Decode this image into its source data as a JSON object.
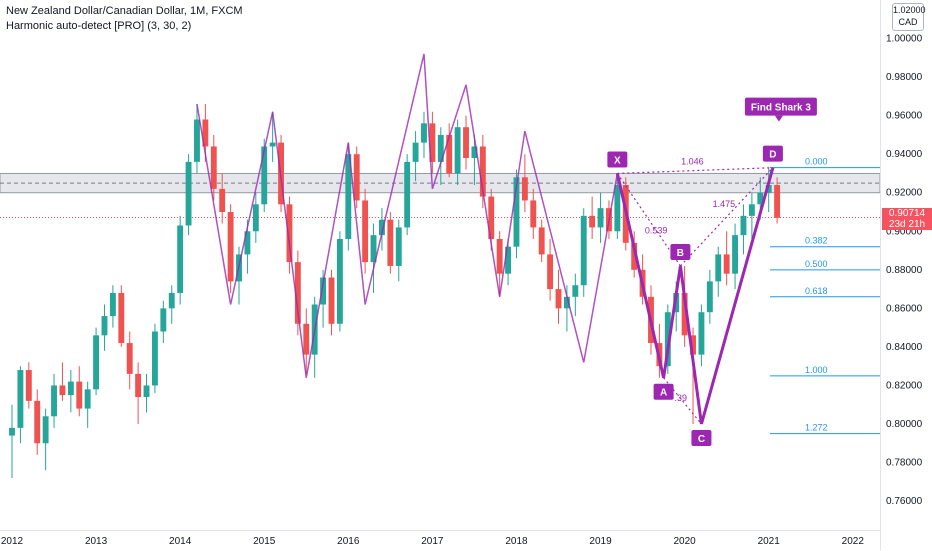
{
  "header": {
    "title": "New Zealand Dollar/Canadian Dollar, 1M, FXCM",
    "indicator": "Harmonic auto-detect [PRO] (3, 30, 2)"
  },
  "currency_badge": {
    "value": "1.02000",
    "unit": "CAD"
  },
  "last_price": {
    "value": "0.90714",
    "countdown": "23d 21h"
  },
  "pattern": {
    "name": "Find Shark 3",
    "points": [
      {
        "label": "X",
        "date": "2019.2",
        "price": 0.93
      },
      {
        "label": "A",
        "date": "2019.75",
        "price": 0.824
      },
      {
        "label": "B",
        "date": "2019.95",
        "price": 0.882
      },
      {
        "label": "C",
        "date": "2020.2",
        "price": 0.8
      },
      {
        "label": "D",
        "date": "2021.05",
        "price": 0.933
      }
    ],
    "ratios": [
      {
        "text": "0.539",
        "between": "X-B"
      },
      {
        "text": "1.046",
        "between": "X-D"
      },
      {
        "text": "1.475",
        "between": "B-D"
      },
      {
        "text": ".39",
        "between": "A-C"
      }
    ]
  },
  "fib_levels": [
    {
      "label": "0.000",
      "price": 0.933
    },
    {
      "label": "0.382",
      "price": 0.892
    },
    {
      "label": "0.500",
      "price": 0.88
    },
    {
      "label": "0.618",
      "price": 0.866
    },
    {
      "label": "1.000",
      "price": 0.825
    },
    {
      "label": "1.272",
      "price": 0.795
    }
  ],
  "colors": {
    "up": "#26a69a",
    "down": "#ef5350",
    "pattern": "#9c27b0",
    "fib": "#2196f3",
    "zone_fill": "#d1d4dc",
    "price_tag": "#f7525f"
  },
  "chart_data": {
    "type": "candlestick",
    "x_axis_labels": [
      "2012",
      "2013",
      "2014",
      "2015",
      "2016",
      "2017",
      "2018",
      "2019",
      "2020",
      "2021",
      "2022"
    ],
    "y_axis_labels": [
      "0.76000",
      "0.78000",
      "0.80000",
      "0.82000",
      "0.84000",
      "0.86000",
      "0.88000",
      "0.90000",
      "0.92000",
      "0.94000",
      "0.96000",
      "0.98000",
      "1.00000"
    ],
    "ylim": [
      0.745,
      1.02
    ],
    "xlim": [
      2012.0,
      2022.3
    ],
    "grid": false,
    "resistance_zone": [
      0.92,
      0.93
    ],
    "candles": [
      {
        "t": 2012.0,
        "o": 0.794,
        "h": 0.81,
        "l": 0.772,
        "c": 0.798
      },
      {
        "t": 2012.1,
        "o": 0.798,
        "h": 0.83,
        "l": 0.79,
        "c": 0.828
      },
      {
        "t": 2012.2,
        "o": 0.828,
        "h": 0.832,
        "l": 0.808,
        "c": 0.812
      },
      {
        "t": 2012.3,
        "o": 0.812,
        "h": 0.818,
        "l": 0.784,
        "c": 0.79
      },
      {
        "t": 2012.4,
        "o": 0.79,
        "h": 0.808,
        "l": 0.776,
        "c": 0.804
      },
      {
        "t": 2012.5,
        "o": 0.804,
        "h": 0.826,
        "l": 0.798,
        "c": 0.82
      },
      {
        "t": 2012.6,
        "o": 0.82,
        "h": 0.832,
        "l": 0.812,
        "c": 0.815
      },
      {
        "t": 2012.7,
        "o": 0.815,
        "h": 0.828,
        "l": 0.806,
        "c": 0.822
      },
      {
        "t": 2012.8,
        "o": 0.822,
        "h": 0.83,
        "l": 0.804,
        "c": 0.808
      },
      {
        "t": 2012.9,
        "o": 0.808,
        "h": 0.822,
        "l": 0.798,
        "c": 0.818
      },
      {
        "t": 2013.0,
        "o": 0.818,
        "h": 0.85,
        "l": 0.815,
        "c": 0.846
      },
      {
        "t": 2013.1,
        "o": 0.846,
        "h": 0.862,
        "l": 0.838,
        "c": 0.856
      },
      {
        "t": 2013.2,
        "o": 0.856,
        "h": 0.872,
        "l": 0.85,
        "c": 0.868
      },
      {
        "t": 2013.3,
        "o": 0.868,
        "h": 0.872,
        "l": 0.84,
        "c": 0.842
      },
      {
        "t": 2013.4,
        "o": 0.842,
        "h": 0.848,
        "l": 0.818,
        "c": 0.826
      },
      {
        "t": 2013.5,
        "o": 0.826,
        "h": 0.832,
        "l": 0.8,
        "c": 0.814
      },
      {
        "t": 2013.6,
        "o": 0.814,
        "h": 0.826,
        "l": 0.806,
        "c": 0.82
      },
      {
        "t": 2013.7,
        "o": 0.82,
        "h": 0.852,
        "l": 0.816,
        "c": 0.848
      },
      {
        "t": 2013.8,
        "o": 0.848,
        "h": 0.864,
        "l": 0.842,
        "c": 0.86
      },
      {
        "t": 2013.9,
        "o": 0.86,
        "h": 0.872,
        "l": 0.852,
        "c": 0.868
      },
      {
        "t": 2014.0,
        "o": 0.868,
        "h": 0.908,
        "l": 0.862,
        "c": 0.903
      },
      {
        "t": 2014.1,
        "o": 0.903,
        "h": 0.94,
        "l": 0.898,
        "c": 0.936
      },
      {
        "t": 2014.2,
        "o": 0.936,
        "h": 0.966,
        "l": 0.93,
        "c": 0.958
      },
      {
        "t": 2014.3,
        "o": 0.958,
        "h": 0.966,
        "l": 0.936,
        "c": 0.944
      },
      {
        "t": 2014.4,
        "o": 0.944,
        "h": 0.95,
        "l": 0.916,
        "c": 0.922
      },
      {
        "t": 2014.5,
        "o": 0.922,
        "h": 0.93,
        "l": 0.904,
        "c": 0.91
      },
      {
        "t": 2014.6,
        "o": 0.91,
        "h": 0.914,
        "l": 0.868,
        "c": 0.874
      },
      {
        "t": 2014.7,
        "o": 0.874,
        "h": 0.892,
        "l": 0.862,
        "c": 0.888
      },
      {
        "t": 2014.8,
        "o": 0.888,
        "h": 0.906,
        "l": 0.878,
        "c": 0.9
      },
      {
        "t": 2014.9,
        "o": 0.9,
        "h": 0.92,
        "l": 0.894,
        "c": 0.914
      },
      {
        "t": 2015.0,
        "o": 0.914,
        "h": 0.948,
        "l": 0.91,
        "c": 0.944
      },
      {
        "t": 2015.1,
        "o": 0.944,
        "h": 0.962,
        "l": 0.936,
        "c": 0.946
      },
      {
        "t": 2015.2,
        "o": 0.946,
        "h": 0.95,
        "l": 0.91,
        "c": 0.914
      },
      {
        "t": 2015.3,
        "o": 0.914,
        "h": 0.918,
        "l": 0.878,
        "c": 0.884
      },
      {
        "t": 2015.4,
        "o": 0.884,
        "h": 0.89,
        "l": 0.846,
        "c": 0.852
      },
      {
        "t": 2015.5,
        "o": 0.852,
        "h": 0.86,
        "l": 0.826,
        "c": 0.836
      },
      {
        "t": 2015.6,
        "o": 0.836,
        "h": 0.866,
        "l": 0.824,
        "c": 0.862
      },
      {
        "t": 2015.7,
        "o": 0.862,
        "h": 0.88,
        "l": 0.85,
        "c": 0.876
      },
      {
        "t": 2015.8,
        "o": 0.876,
        "h": 0.88,
        "l": 0.846,
        "c": 0.852
      },
      {
        "t": 2015.9,
        "o": 0.852,
        "h": 0.9,
        "l": 0.848,
        "c": 0.896
      },
      {
        "t": 2016.0,
        "o": 0.896,
        "h": 0.946,
        "l": 0.89,
        "c": 0.94
      },
      {
        "t": 2016.1,
        "o": 0.94,
        "h": 0.944,
        "l": 0.912,
        "c": 0.916
      },
      {
        "t": 2016.2,
        "o": 0.916,
        "h": 0.922,
        "l": 0.878,
        "c": 0.884
      },
      {
        "t": 2016.3,
        "o": 0.884,
        "h": 0.904,
        "l": 0.868,
        "c": 0.898
      },
      {
        "t": 2016.4,
        "o": 0.898,
        "h": 0.912,
        "l": 0.89,
        "c": 0.906
      },
      {
        "t": 2016.5,
        "o": 0.906,
        "h": 0.91,
        "l": 0.878,
        "c": 0.882
      },
      {
        "t": 2016.6,
        "o": 0.882,
        "h": 0.906,
        "l": 0.874,
        "c": 0.902
      },
      {
        "t": 2016.7,
        "o": 0.902,
        "h": 0.94,
        "l": 0.898,
        "c": 0.936
      },
      {
        "t": 2016.8,
        "o": 0.936,
        "h": 0.952,
        "l": 0.926,
        "c": 0.946
      },
      {
        "t": 2016.9,
        "o": 0.946,
        "h": 0.962,
        "l": 0.938,
        "c": 0.956
      },
      {
        "t": 2017.0,
        "o": 0.956,
        "h": 0.962,
        "l": 0.93,
        "c": 0.936
      },
      {
        "t": 2017.1,
        "o": 0.936,
        "h": 0.954,
        "l": 0.924,
        "c": 0.95
      },
      {
        "t": 2017.2,
        "o": 0.95,
        "h": 0.956,
        "l": 0.928,
        "c": 0.93
      },
      {
        "t": 2017.3,
        "o": 0.93,
        "h": 0.958,
        "l": 0.924,
        "c": 0.954
      },
      {
        "t": 2017.4,
        "o": 0.954,
        "h": 0.96,
        "l": 0.932,
        "c": 0.938
      },
      {
        "t": 2017.5,
        "o": 0.938,
        "h": 0.95,
        "l": 0.924,
        "c": 0.944
      },
      {
        "t": 2017.6,
        "o": 0.944,
        "h": 0.95,
        "l": 0.912,
        "c": 0.918
      },
      {
        "t": 2017.7,
        "o": 0.918,
        "h": 0.922,
        "l": 0.89,
        "c": 0.896
      },
      {
        "t": 2017.8,
        "o": 0.896,
        "h": 0.9,
        "l": 0.866,
        "c": 0.878
      },
      {
        "t": 2017.9,
        "o": 0.878,
        "h": 0.896,
        "l": 0.872,
        "c": 0.892
      },
      {
        "t": 2018.0,
        "o": 0.892,
        "h": 0.932,
        "l": 0.886,
        "c": 0.928
      },
      {
        "t": 2018.1,
        "o": 0.928,
        "h": 0.94,
        "l": 0.91,
        "c": 0.916
      },
      {
        "t": 2018.2,
        "o": 0.916,
        "h": 0.922,
        "l": 0.896,
        "c": 0.902
      },
      {
        "t": 2018.3,
        "o": 0.902,
        "h": 0.906,
        "l": 0.884,
        "c": 0.888
      },
      {
        "t": 2018.4,
        "o": 0.888,
        "h": 0.896,
        "l": 0.864,
        "c": 0.87
      },
      {
        "t": 2018.5,
        "o": 0.87,
        "h": 0.88,
        "l": 0.852,
        "c": 0.86
      },
      {
        "t": 2018.6,
        "o": 0.86,
        "h": 0.872,
        "l": 0.848,
        "c": 0.866
      },
      {
        "t": 2018.7,
        "o": 0.866,
        "h": 0.878,
        "l": 0.856,
        "c": 0.872
      },
      {
        "t": 2018.8,
        "o": 0.872,
        "h": 0.912,
        "l": 0.866,
        "c": 0.908
      },
      {
        "t": 2018.9,
        "o": 0.908,
        "h": 0.918,
        "l": 0.896,
        "c": 0.902
      },
      {
        "t": 2019.0,
        "o": 0.902,
        "h": 0.92,
        "l": 0.894,
        "c": 0.912
      },
      {
        "t": 2019.1,
        "o": 0.912,
        "h": 0.916,
        "l": 0.896,
        "c": 0.9
      },
      {
        "t": 2019.2,
        "o": 0.9,
        "h": 0.93,
        "l": 0.896,
        "c": 0.924
      },
      {
        "t": 2019.3,
        "o": 0.924,
        "h": 0.928,
        "l": 0.89,
        "c": 0.894
      },
      {
        "t": 2019.4,
        "o": 0.894,
        "h": 0.9,
        "l": 0.876,
        "c": 0.88
      },
      {
        "t": 2019.5,
        "o": 0.88,
        "h": 0.888,
        "l": 0.862,
        "c": 0.866
      },
      {
        "t": 2019.6,
        "o": 0.866,
        "h": 0.872,
        "l": 0.836,
        "c": 0.842
      },
      {
        "t": 2019.7,
        "o": 0.842,
        "h": 0.852,
        "l": 0.824,
        "c": 0.83
      },
      {
        "t": 2019.8,
        "o": 0.83,
        "h": 0.862,
        "l": 0.826,
        "c": 0.858
      },
      {
        "t": 2019.9,
        "o": 0.858,
        "h": 0.874,
        "l": 0.848,
        "c": 0.868
      },
      {
        "t": 2020.0,
        "o": 0.868,
        "h": 0.882,
        "l": 0.84,
        "c": 0.846
      },
      {
        "t": 2020.1,
        "o": 0.846,
        "h": 0.85,
        "l": 0.8,
        "c": 0.836
      },
      {
        "t": 2020.2,
        "o": 0.836,
        "h": 0.862,
        "l": 0.83,
        "c": 0.858
      },
      {
        "t": 2020.3,
        "o": 0.858,
        "h": 0.88,
        "l": 0.852,
        "c": 0.874
      },
      {
        "t": 2020.4,
        "o": 0.874,
        "h": 0.892,
        "l": 0.866,
        "c": 0.888
      },
      {
        "t": 2020.5,
        "o": 0.888,
        "h": 0.9,
        "l": 0.872,
        "c": 0.878
      },
      {
        "t": 2020.6,
        "o": 0.878,
        "h": 0.904,
        "l": 0.87,
        "c": 0.898
      },
      {
        "t": 2020.7,
        "o": 0.898,
        "h": 0.914,
        "l": 0.888,
        "c": 0.908
      },
      {
        "t": 2020.8,
        "o": 0.908,
        "h": 0.92,
        "l": 0.896,
        "c": 0.914
      },
      {
        "t": 2020.9,
        "o": 0.914,
        "h": 0.928,
        "l": 0.906,
        "c": 0.92
      },
      {
        "t": 2021.0,
        "o": 0.92,
        "h": 0.933,
        "l": 0.91,
        "c": 0.924
      },
      {
        "t": 2021.1,
        "o": 0.924,
        "h": 0.928,
        "l": 0.904,
        "c": 0.907
      }
    ]
  }
}
